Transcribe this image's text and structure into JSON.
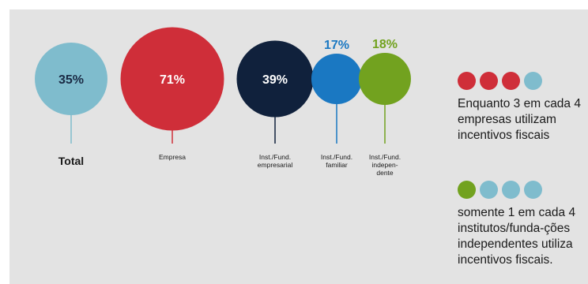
{
  "chart_data": {
    "type": "bubble",
    "categories": [
      {
        "id": "total",
        "label": "Total",
        "value": 35,
        "value_label": "35%",
        "color": "#7fbccd",
        "label_inside": true
      },
      {
        "id": "empresa",
        "label": "Empresa",
        "value": 71,
        "value_label": "71%",
        "color": "#cf2e39",
        "label_inside": true
      },
      {
        "id": "inst-empresarial",
        "label": "Inst./Fund.\nempresarial",
        "value": 39,
        "value_label": "39%",
        "color": "#10213c",
        "label_inside": true
      },
      {
        "id": "inst-familiar",
        "label": "Inst./Fund.\nfamiliar",
        "value": 17,
        "value_label": "17%",
        "color": "#1a78c2",
        "label_inside": false
      },
      {
        "id": "inst-independente",
        "label": "Inst./Fund.\nindepen-\ndente",
        "value": 18,
        "value_label": "18%",
        "color": "#72a21f",
        "label_inside": false
      }
    ]
  },
  "legend": [
    {
      "filled_count": 3,
      "total": 4,
      "filled_color": "#cf2e39",
      "empty_color": "#7fbccd",
      "text": "Enquanto 3 em cada 4 empresas utilizam incentivos fiscais"
    },
    {
      "filled_count": 1,
      "total": 4,
      "filled_color": "#72a21f",
      "empty_color": "#7fbccd",
      "text": "somente 1 em cada 4 institutos/funda-ções independentes utiliza incentivos fiscais."
    }
  ]
}
